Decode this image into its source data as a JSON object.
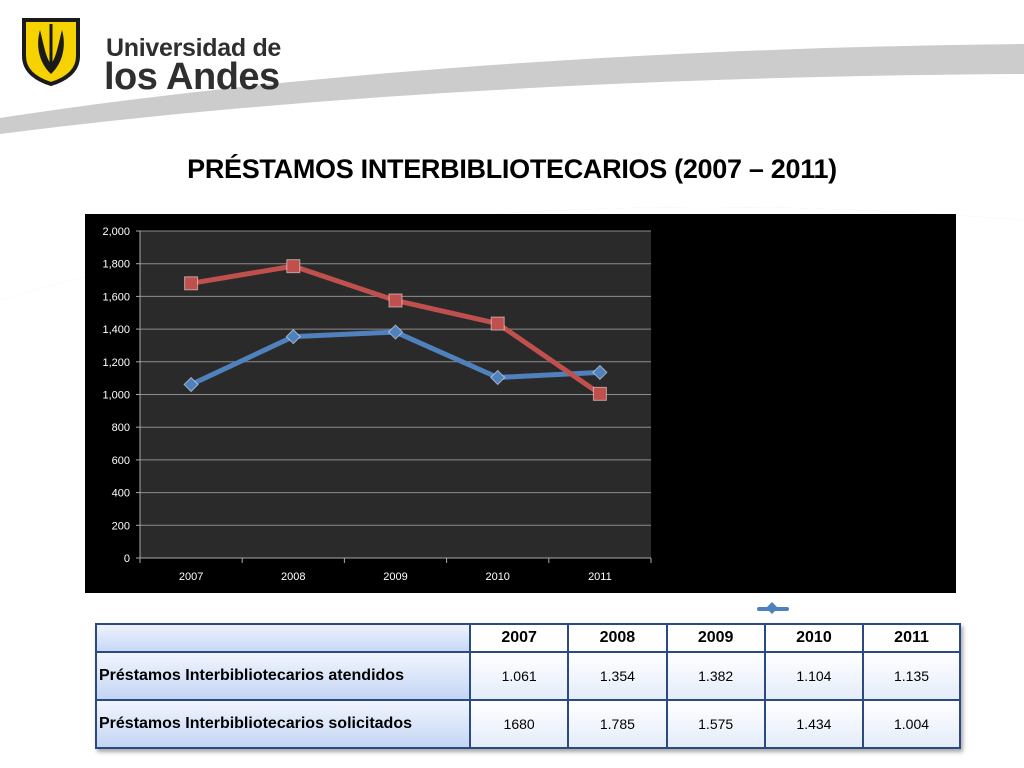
{
  "slide": {
    "logo_line1": "Universidad de",
    "logo_line2": "los Andes",
    "title": "PRÉSTAMOS INTERBIBLIOTECARIOS (2007 – 2011)"
  },
  "colors": {
    "chart_background": "#000000",
    "grid": "#8c8c8c",
    "series_atendidos": "#4f81bd",
    "series_solicitados": "#c0504d",
    "table_border": "#2b4a82"
  },
  "chart_data": {
    "type": "line",
    "categories": [
      "2007",
      "2008",
      "2009",
      "2010",
      "2011"
    ],
    "series": [
      {
        "name": "Préstamos Interbibliotecarios atendidos",
        "values": [
          1061,
          1354,
          1382,
          1104,
          1135
        ],
        "marker": "diamond"
      },
      {
        "name": "Préstamos Interbibliotecarios solicitados",
        "values": [
          1680,
          1785,
          1575,
          1434,
          1004
        ],
        "marker": "square"
      }
    ],
    "ylim": [
      0,
      2000
    ],
    "yticks": [
      "0",
      "200",
      "400",
      "600",
      "800",
      "1,000",
      "1,200",
      "1,400",
      "1,600",
      "1,800",
      "2,000"
    ],
    "ytick_values": [
      0,
      200,
      400,
      600,
      800,
      1000,
      1200,
      1400,
      1600,
      1800,
      2000
    ],
    "grid": true,
    "legend_position": "right"
  },
  "table": {
    "headers": [
      "2007",
      "2008",
      "2009",
      "2010",
      "2011"
    ],
    "rows": [
      {
        "label": "Préstamos Interbibliotecarios atendidos",
        "values": [
          "1.061",
          "1.354",
          "1.382",
          "1.104",
          "1.135"
        ]
      },
      {
        "label": "Préstamos Interbibliotecarios solicitados",
        "values": [
          "1680",
          "1.785",
          "1.575",
          "1.434",
          "1.004"
        ]
      }
    ]
  }
}
